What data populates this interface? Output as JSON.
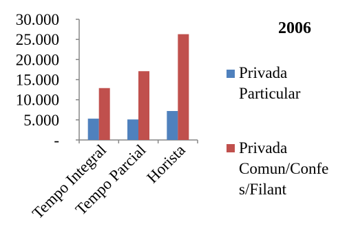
{
  "chart_data": {
    "type": "bar",
    "title": "2006",
    "categories": [
      "Tempo Integral",
      "Tempo Parcial",
      "Horista"
    ],
    "series": [
      {
        "name": "Privada Particular",
        "color": "#4f81bd",
        "values": [
          5300,
          5100,
          7200
        ]
      },
      {
        "name": "Privada Comun/Confes/Filant",
        "color": "#c0504d",
        "values": [
          12900,
          17100,
          26300
        ]
      }
    ],
    "ylim": [
      0,
      30000
    ],
    "ytick_labels": [
      "-",
      "5.000",
      "10.000",
      "15.000",
      "20.000",
      "25.000",
      "30.000"
    ],
    "legend_lines": [
      [
        "Privada",
        "Particular"
      ],
      [
        "Privada",
        "Comun/Confe",
        "s/Filant"
      ]
    ],
    "grid": false,
    "legend_position": "right"
  }
}
